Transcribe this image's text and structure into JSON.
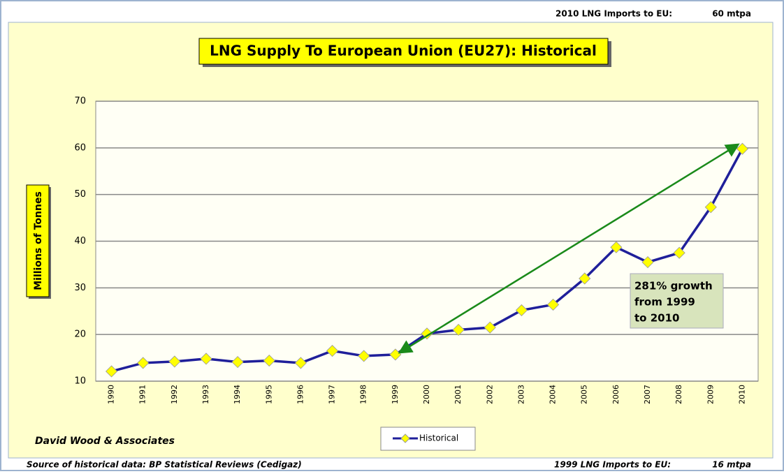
{
  "chart_data": {
    "type": "line",
    "title": "LNG Supply To European Union (EU27): Historical",
    "y_label": "Millions of Tonnes",
    "top_note": "2010 LNG Imports to EU:",
    "top_note_value": "60 mtpa",
    "bottom_note": "1999 LNG Imports to EU:",
    "bottom_note_value": "16 mtpa",
    "source": "Source of historical data: BP Statistical Reviews (Cedigaz)",
    "credit": "David Wood & Associates",
    "annotation": [
      "281% growth",
      "from 1999",
      "to 2010"
    ],
    "categories": [
      "1990",
      "1991",
      "1992",
      "1993",
      "1994",
      "1995",
      "1996",
      "1997",
      "1998",
      "1999",
      "2000",
      "2001",
      "2002",
      "2003",
      "2004",
      "2005",
      "2006",
      "2007",
      "2008",
      "2009",
      "2010"
    ],
    "series": [
      {
        "name": "Historical",
        "color": "#1f1f9a",
        "marker_color": "#ffff00",
        "values": [
          12.1,
          13.9,
          14.2,
          14.8,
          14.1,
          14.4,
          13.9,
          16.5,
          15.4,
          15.7,
          20.2,
          21.0,
          21.5,
          25.2,
          26.4,
          32.0,
          38.7,
          35.5,
          37.5,
          47.3,
          59.8
        ]
      }
    ],
    "ylim": [
      10,
      70
    ],
    "yticks": [
      10,
      20,
      30,
      40,
      50,
      60,
      70
    ],
    "grid": true
  }
}
